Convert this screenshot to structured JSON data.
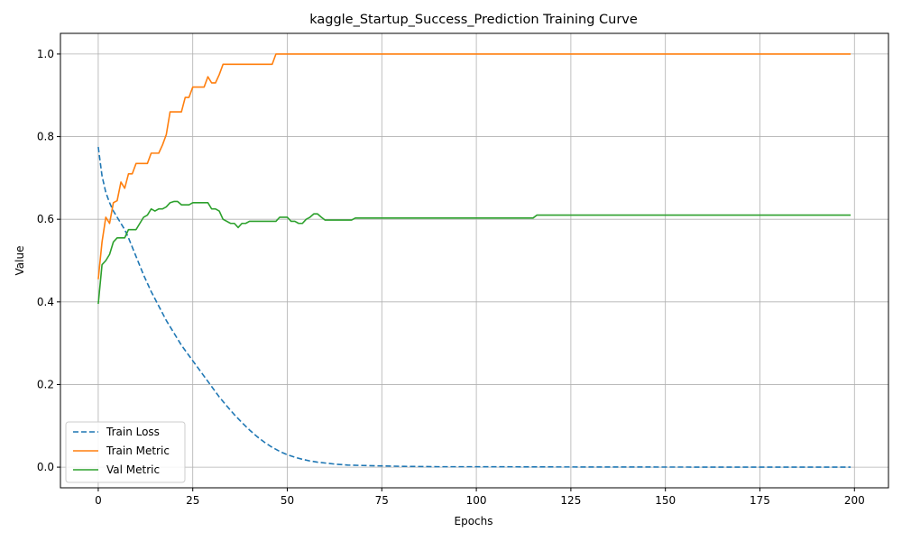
{
  "chart_data": {
    "type": "line",
    "title": "kaggle_Startup_Success_Prediction Training Curve",
    "xlabel": "Epochs",
    "ylabel": "Value",
    "xlim": [
      -10,
      209
    ],
    "ylim": [
      -0.05,
      1.05
    ],
    "xticks": [
      0,
      25,
      50,
      75,
      100,
      125,
      150,
      175,
      200
    ],
    "xtick_labels": [
      "0",
      "25",
      "50",
      "75",
      "100",
      "125",
      "150",
      "175",
      "200"
    ],
    "yticks": [
      0.0,
      0.2,
      0.4,
      0.6,
      0.8,
      1.0
    ],
    "ytick_labels": [
      "0.0",
      "0.2",
      "0.4",
      "0.6",
      "0.8",
      "1.0"
    ],
    "grid": true,
    "legend_position": "lower-left",
    "series": [
      {
        "name": "Train Loss",
        "color": "#1f77b4",
        "dash": "dashed",
        "x": [
          0,
          1,
          2,
          3,
          4,
          5,
          6,
          7,
          8,
          10,
          12,
          14,
          16,
          18,
          20,
          22,
          24,
          26,
          28,
          30,
          32,
          34,
          36,
          38,
          40,
          42,
          44,
          46,
          48,
          50,
          52,
          54,
          56,
          58,
          60,
          63,
          66,
          70,
          75,
          80,
          90,
          100,
          120,
          150,
          175,
          199
        ],
        "y": [
          0.775,
          0.705,
          0.665,
          0.64,
          0.62,
          0.605,
          0.59,
          0.575,
          0.555,
          0.51,
          0.465,
          0.425,
          0.39,
          0.355,
          0.325,
          0.295,
          0.27,
          0.245,
          0.22,
          0.195,
          0.17,
          0.148,
          0.127,
          0.108,
          0.09,
          0.074,
          0.06,
          0.048,
          0.038,
          0.03,
          0.024,
          0.019,
          0.015,
          0.012,
          0.01,
          0.007,
          0.005,
          0.004,
          0.003,
          0.002,
          0.001,
          0.001,
          0.0005,
          0.0002,
          0.0001,
          0.0
        ]
      },
      {
        "name": "Train Metric",
        "color": "#ff7f0e",
        "dash": "solid",
        "x": [
          0,
          1,
          2,
          3,
          4,
          5,
          6,
          7,
          8,
          9,
          10,
          11,
          12,
          13,
          14,
          15,
          16,
          17,
          18,
          19,
          20,
          21,
          22,
          23,
          24,
          25,
          26,
          27,
          28,
          29,
          30,
          31,
          32,
          33,
          34,
          35,
          36,
          37,
          38,
          39,
          40,
          41,
          42,
          43,
          44,
          45,
          46,
          47,
          48,
          60,
          100,
          150,
          199
        ],
        "y": [
          0.455,
          0.545,
          0.605,
          0.59,
          0.64,
          0.645,
          0.69,
          0.675,
          0.71,
          0.71,
          0.735,
          0.735,
          0.735,
          0.735,
          0.76,
          0.76,
          0.76,
          0.78,
          0.805,
          0.86,
          0.86,
          0.86,
          0.86,
          0.895,
          0.895,
          0.92,
          0.92,
          0.92,
          0.92,
          0.945,
          0.93,
          0.93,
          0.95,
          0.975,
          0.975,
          0.975,
          0.975,
          0.975,
          0.975,
          0.975,
          0.975,
          0.975,
          0.975,
          0.975,
          0.975,
          0.975,
          0.975,
          1.0,
          1.0,
          1.0,
          1.0,
          1.0,
          1.0
        ]
      },
      {
        "name": "Val Metric",
        "color": "#2ca02c",
        "dash": "solid",
        "x": [
          0,
          1,
          2,
          3,
          4,
          5,
          6,
          7,
          8,
          9,
          10,
          11,
          12,
          13,
          14,
          15,
          16,
          17,
          18,
          19,
          20,
          21,
          22,
          23,
          24,
          25,
          26,
          27,
          28,
          29,
          30,
          31,
          32,
          33,
          34,
          35,
          36,
          37,
          38,
          39,
          40,
          42,
          44,
          46,
          47,
          48,
          49,
          50,
          51,
          52,
          53,
          54,
          55,
          56,
          57,
          58,
          59,
          60,
          62,
          64,
          66,
          67,
          68,
          70,
          80,
          90,
          100,
          110,
          114,
          115,
          116,
          130,
          150,
          175,
          199
        ],
        "y": [
          0.395,
          0.49,
          0.5,
          0.515,
          0.545,
          0.555,
          0.555,
          0.555,
          0.575,
          0.575,
          0.575,
          0.59,
          0.605,
          0.61,
          0.625,
          0.62,
          0.625,
          0.625,
          0.63,
          0.64,
          0.643,
          0.643,
          0.635,
          0.635,
          0.635,
          0.64,
          0.64,
          0.64,
          0.64,
          0.64,
          0.625,
          0.625,
          0.62,
          0.6,
          0.595,
          0.59,
          0.59,
          0.58,
          0.59,
          0.59,
          0.595,
          0.595,
          0.595,
          0.595,
          0.595,
          0.605,
          0.605,
          0.605,
          0.595,
          0.595,
          0.59,
          0.59,
          0.6,
          0.605,
          0.613,
          0.613,
          0.605,
          0.598,
          0.598,
          0.598,
          0.598,
          0.598,
          0.603,
          0.603,
          0.603,
          0.603,
          0.603,
          0.603,
          0.603,
          0.603,
          0.61,
          0.61,
          0.61,
          0.61,
          0.61
        ]
      }
    ]
  }
}
